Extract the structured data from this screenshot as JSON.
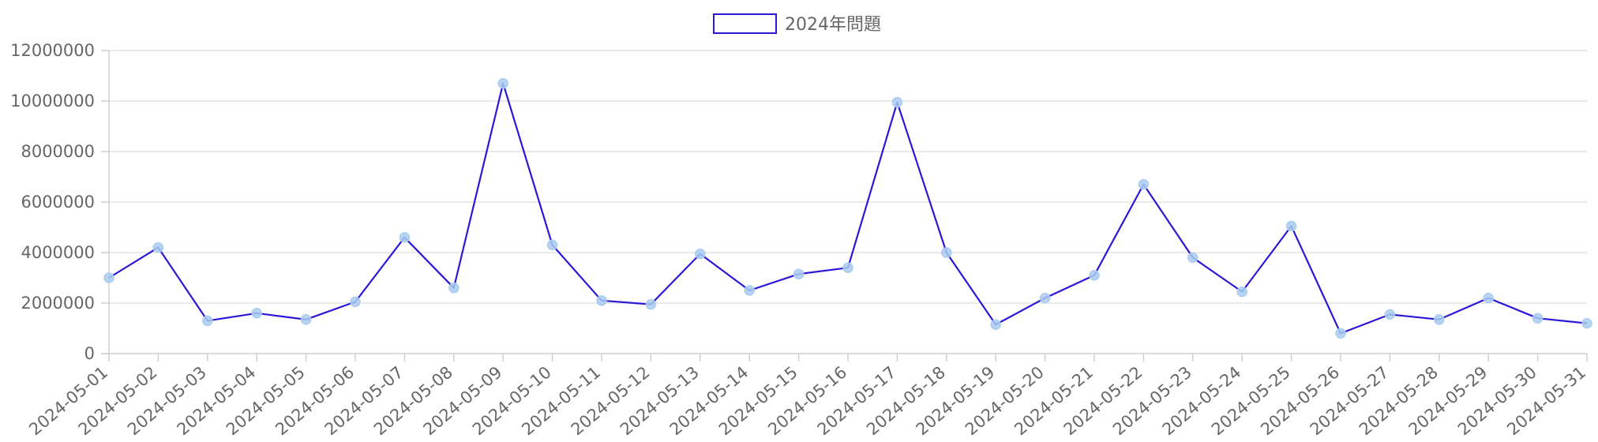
{
  "chart_data": {
    "type": "line",
    "legend": {
      "label": "2024年問題",
      "position": "top"
    },
    "x": [
      "2024-05-01",
      "2024-05-02",
      "2024-05-03",
      "2024-05-04",
      "2024-05-05",
      "2024-05-06",
      "2024-05-07",
      "2024-05-08",
      "2024-05-09",
      "2024-05-10",
      "2024-05-11",
      "2024-05-12",
      "2024-05-13",
      "2024-05-14",
      "2024-05-15",
      "2024-05-16",
      "2024-05-17",
      "2024-05-18",
      "2024-05-19",
      "2024-05-20",
      "2024-05-21",
      "2024-05-22",
      "2024-05-23",
      "2024-05-24",
      "2024-05-25",
      "2024-05-26",
      "2024-05-27",
      "2024-05-28",
      "2024-05-29",
      "2024-05-30",
      "2024-05-31"
    ],
    "series": [
      {
        "name": "2024年問題",
        "color": "#2a17d8",
        "point_color": "#a9cdf0",
        "values": [
          3000000,
          4200000,
          1300000,
          1600000,
          1350000,
          2050000,
          4600000,
          2600000,
          10700000,
          4300000,
          2100000,
          1950000,
          3950000,
          2500000,
          3150000,
          3400000,
          9950000,
          4000000,
          1150000,
          2200000,
          3100000,
          6700000,
          3800000,
          2450000,
          5050000,
          800000,
          1550000,
          1350000,
          2200000,
          1400000,
          1200000
        ]
      }
    ],
    "y_ticks": [
      "0",
      "2000000",
      "4000000",
      "6000000",
      "8000000",
      "10000000",
      "12000000"
    ],
    "ylim": [
      0,
      12000000
    ],
    "grid": true
  }
}
